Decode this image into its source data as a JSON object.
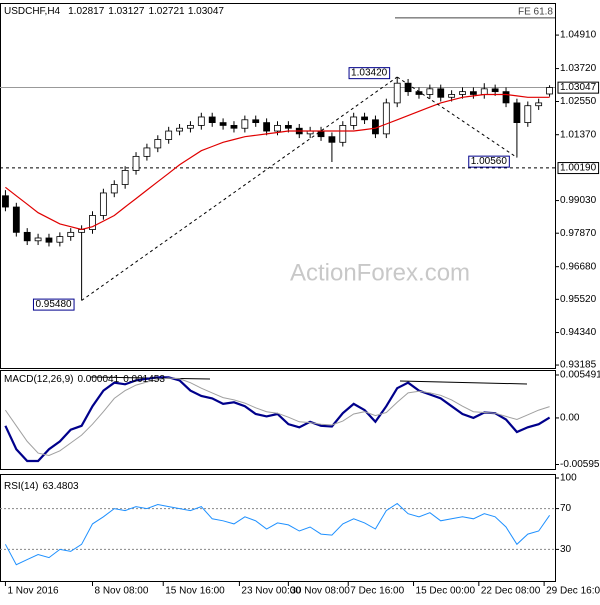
{
  "chart_data": [
    {
      "type": "candlestick",
      "title": "USDCHF,H4",
      "xlim": [
        -0.5,
        50.5
      ],
      "xticks": [
        {
          "value": 0,
          "label": "1 Nov 2016"
        },
        {
          "value": 8,
          "label": "8 Nov 08:00"
        },
        {
          "value": 14.5,
          "label": "15 Nov 16:00"
        },
        {
          "value": 21.5,
          "label": "23 Nov 00:00"
        },
        {
          "value": 26,
          "label": "30 Nov 08:00"
        },
        {
          "value": 31.5,
          "label": "7 Dec 16:00"
        },
        {
          "value": 37.5,
          "label": "15 Dec 00:00"
        },
        {
          "value": 43.5,
          "label": "22 Dec 08:00"
        },
        {
          "value": 49.5,
          "label": "29 Dec 16:00"
        }
      ],
      "ylim": [
        0.9308,
        1.0605
      ],
      "yticks": [
        {
          "value": 1.0491,
          "label": "1.04910"
        },
        {
          "value": 1.0372,
          "label": "1.03720"
        },
        {
          "value": 1.0255,
          "label": "1.02550"
        },
        {
          "value": 1.0137,
          "label": "1.01370"
        },
        {
          "value": 0.9903,
          "label": "0.99030"
        },
        {
          "value": 0.9787,
          "label": "0.97870"
        },
        {
          "value": 0.9668,
          "label": "0.96680"
        },
        {
          "value": 0.9552,
          "label": "0.95520"
        },
        {
          "value": 0.9434,
          "label": "0.94340"
        },
        {
          "value": 0.93185,
          "label": "0.93185"
        }
      ],
      "open": [
        0.992,
        0.988,
        0.979,
        0.976,
        0.977,
        0.9755,
        0.9775,
        0.979,
        0.98,
        0.985,
        0.993,
        0.996,
        1.001,
        1.006,
        1.009,
        1.012,
        1.015,
        1.016,
        1.017,
        1.02,
        1.018,
        1.017,
        1.016,
        1.019,
        1.018,
        1.015,
        1.017,
        1.016,
        1.014,
        1.015,
        1.013,
        1.011,
        1.017,
        1.02,
        1.019,
        1.014,
        1.025,
        1.032,
        1.029,
        1.028,
        1.03,
        1.027,
        1.028,
        1.029,
        1.028,
        1.03,
        1.029,
        1.025,
        1.018,
        1.024,
        1.02817
      ],
      "high": [
        0.994,
        0.9895,
        0.9805,
        0.9785,
        0.9785,
        0.979,
        0.9805,
        0.9815,
        0.9865,
        0.9945,
        0.9975,
        1.0025,
        1.0075,
        1.0105,
        1.0135,
        1.0165,
        1.0175,
        1.0185,
        1.0215,
        1.0215,
        1.0195,
        1.0185,
        1.0205,
        1.0205,
        1.0195,
        1.0185,
        1.0185,
        1.0175,
        1.0165,
        1.0165,
        1.0145,
        1.0185,
        1.0215,
        1.0215,
        1.0205,
        1.0265,
        1.0342,
        1.0335,
        1.0305,
        1.0315,
        1.0315,
        1.0295,
        1.0305,
        1.0305,
        1.032,
        1.0315,
        1.0305,
        1.0265,
        1.0255,
        1.0265,
        1.03127
      ],
      "low": [
        0.9865,
        0.9775,
        0.9745,
        0.9745,
        0.974,
        0.974,
        0.976,
        0.9548,
        0.9785,
        0.9835,
        0.9915,
        0.9945,
        0.9995,
        1.0045,
        1.0075,
        1.0105,
        1.0135,
        1.0145,
        1.0155,
        1.0165,
        1.0155,
        1.0145,
        1.0145,
        1.0165,
        1.0135,
        1.0135,
        1.0145,
        1.0125,
        1.0125,
        1.0115,
        1.004,
        1.0095,
        1.0155,
        1.0175,
        1.0125,
        1.0125,
        1.0235,
        1.0275,
        1.0265,
        1.0265,
        1.0255,
        1.0255,
        1.0265,
        1.0265,
        1.0265,
        1.0275,
        1.0235,
        1.0056,
        1.0165,
        1.0225,
        1.02721
      ],
      "close": [
        0.988,
        0.979,
        0.976,
        0.977,
        0.9755,
        0.9775,
        0.979,
        0.98,
        0.985,
        0.993,
        0.996,
        1.001,
        1.006,
        1.009,
        1.012,
        1.015,
        1.016,
        1.017,
        1.02,
        1.018,
        1.017,
        1.016,
        1.019,
        1.018,
        1.015,
        1.017,
        1.016,
        1.014,
        1.015,
        1.013,
        1.011,
        1.017,
        1.02,
        1.019,
        1.014,
        1.025,
        1.032,
        1.029,
        1.028,
        1.03,
        1.027,
        1.028,
        1.029,
        1.028,
        1.03,
        1.029,
        1.025,
        1.018,
        1.024,
        1.025,
        1.03047
      ],
      "moving_average": {
        "color": "#e00000",
        "values": [
          0.995,
          0.992,
          0.989,
          0.986,
          0.984,
          0.982,
          0.981,
          0.98,
          0.981,
          0.983,
          0.985,
          0.988,
          0.991,
          0.994,
          0.997,
          1.0,
          1.003,
          1.0055,
          1.008,
          1.0095,
          1.011,
          1.012,
          1.013,
          1.0135,
          1.014,
          1.0145,
          1.015,
          1.015,
          1.015,
          1.015,
          1.015,
          1.015,
          1.015,
          1.0155,
          1.016,
          1.0175,
          1.019,
          1.0205,
          1.022,
          1.0235,
          1.025,
          1.026,
          1.027,
          1.0275,
          1.028,
          1.028,
          1.028,
          1.0275,
          1.027,
          1.027,
          1.027
        ]
      },
      "annotations": [
        {
          "value": 0.9548,
          "label": "0.95480",
          "x": 7
        },
        {
          "value": 1.0342,
          "label": "1.03420",
          "x": 36
        },
        {
          "value": 1.0056,
          "label": "1.00560",
          "x": 47
        }
      ],
      "hlines": [
        {
          "value": 1.0019,
          "label": "1.00190"
        }
      ],
      "fe_line": {
        "value": 1.0552,
        "label": "FE 61.8"
      },
      "watermark": "ActionForex.com"
    },
    {
      "type": "line",
      "title": "MACD(12,26,9)",
      "ylim": [
        -0.0064,
        0.006
      ],
      "yticks": [
        0.005491,
        {
          "value": 0,
          "label": "0.00"
        },
        -0.005952
      ],
      "series": [
        {
          "color": "#00008b",
          "values": [
            -0.001,
            -0.004,
            -0.0055,
            -0.0055,
            -0.004,
            -0.003,
            -0.0015,
            -0.001,
            0.0015,
            0.0035,
            0.0045,
            0.0043,
            0.0048,
            0.005,
            0.0052,
            0.0052,
            0.0048,
            0.0035,
            0.0028,
            0.0025,
            0.0018,
            0.002,
            0.0015,
            0.0005,
            0.0002,
            0.0005,
            -0.0008,
            -0.0012,
            -0.0005,
            -0.001,
            -0.0011,
            0.0006,
            0.0018,
            0.001,
            -0.0005,
            0.0015,
            0.0038,
            0.0045,
            0.0035,
            0.003,
            0.0025,
            0.0015,
            0.0005,
            0.0,
            0.0007,
            0.0006,
            -0.0002,
            -0.0018,
            -0.0012,
            -0.0008,
            4.1e-05
          ]
        },
        {
          "color": "#a0a0a0",
          "values": [
            0.001,
            -0.001,
            -0.003,
            -0.0045,
            -0.0048,
            -0.0042,
            -0.0032,
            -0.0022,
            -0.0008,
            0.0008,
            0.0025,
            0.0035,
            0.0042,
            0.0046,
            0.0049,
            0.0051,
            0.005,
            0.0045,
            0.0038,
            0.0032,
            0.0026,
            0.0023,
            0.0019,
            0.0013,
            0.0008,
            0.0006,
            0.0001,
            -0.0005,
            -0.0006,
            -0.0008,
            -0.0009,
            -0.0004,
            0.0005,
            0.0008,
            0.0003,
            0.0007,
            0.002,
            0.0032,
            0.0034,
            0.0032,
            0.0029,
            0.0023,
            0.0015,
            0.0008,
            0.0007,
            0.0006,
            0.0002,
            -0.0002,
            0.0004,
            0.001,
            0.001453
          ]
        }
      ]
    },
    {
      "type": "line",
      "title": "RSI(14)",
      "ylim": [
        0,
        100
      ],
      "yticks": [
        100,
        70,
        30
      ],
      "levels": [
        70,
        30
      ],
      "series": [
        {
          "color": "#1e90ff",
          "values": [
            35,
            15,
            20,
            25,
            22,
            30,
            28,
            35,
            55,
            62,
            70,
            68,
            72,
            70,
            74,
            72,
            70,
            68,
            72,
            60,
            58,
            55,
            62,
            58,
            50,
            56,
            54,
            48,
            52,
            45,
            44,
            55,
            60,
            56,
            50,
            68,
            75,
            65,
            62,
            66,
            58,
            60,
            62,
            60,
            65,
            62,
            52,
            35,
            45,
            48,
            63.4803
          ]
        }
      ]
    }
  ]
}
